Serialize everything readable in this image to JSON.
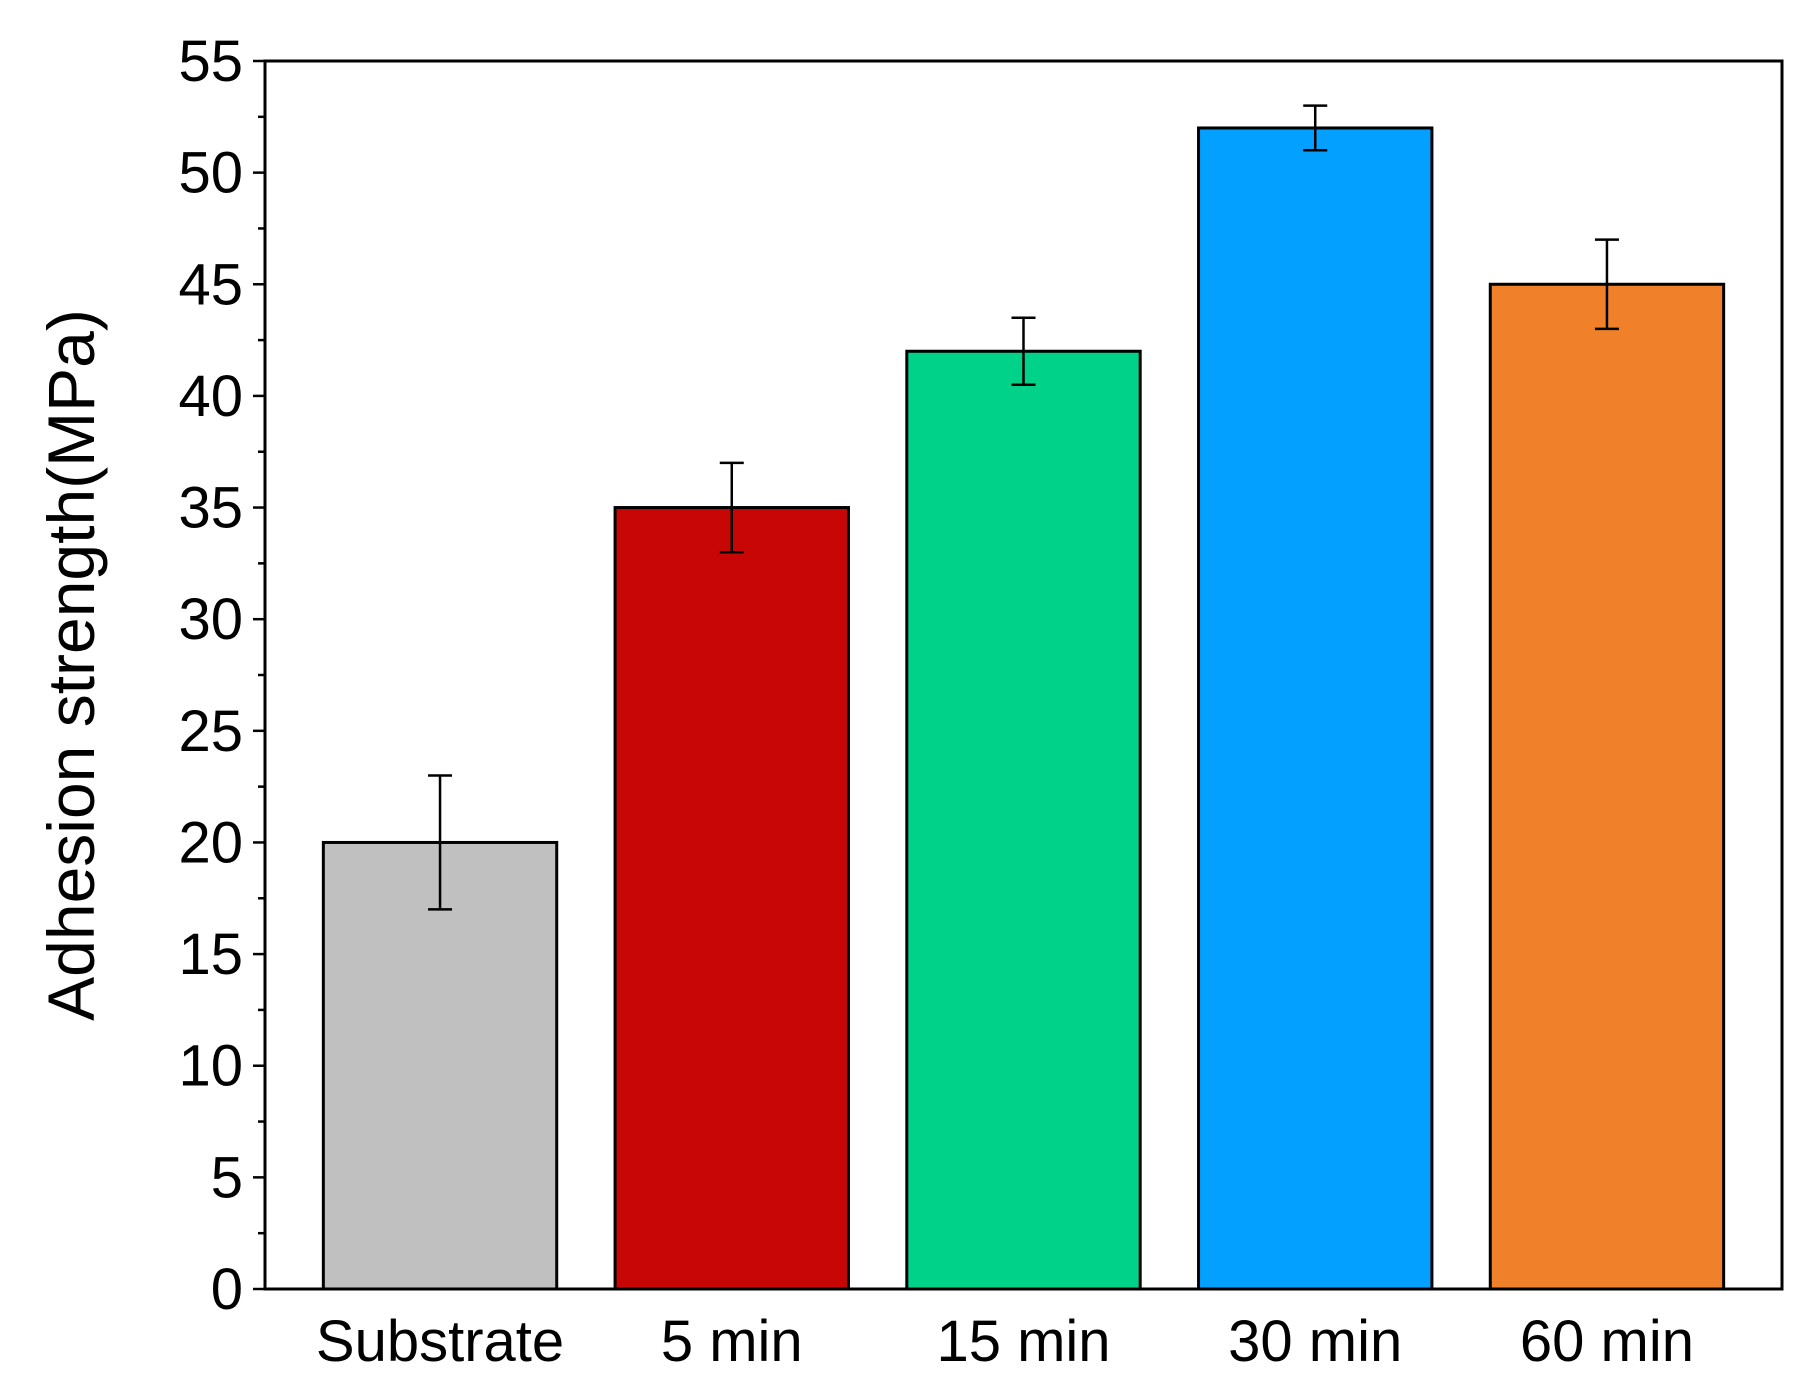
{
  "chart_data": {
    "type": "bar",
    "title": "",
    "xlabel": "",
    "ylabel": "Adhesion strength(MPa)",
    "categories": [
      "Substrate",
      "5 min",
      "15 min",
      "30 min",
      "60 min"
    ],
    "values": [
      20,
      35,
      42,
      52,
      45
    ],
    "errors": [
      3,
      2,
      1.5,
      1,
      2
    ],
    "colors": [
      "#c0c0c0",
      "#c80606",
      "#00d28a",
      "#03a0ff",
      "#f0812a"
    ],
    "ylim": [
      0,
      55
    ],
    "yticks": [
      0,
      5,
      10,
      15,
      20,
      25,
      30,
      35,
      40,
      45,
      50,
      55
    ],
    "yminor_step": 2.5,
    "grid": false,
    "legend": "none"
  }
}
